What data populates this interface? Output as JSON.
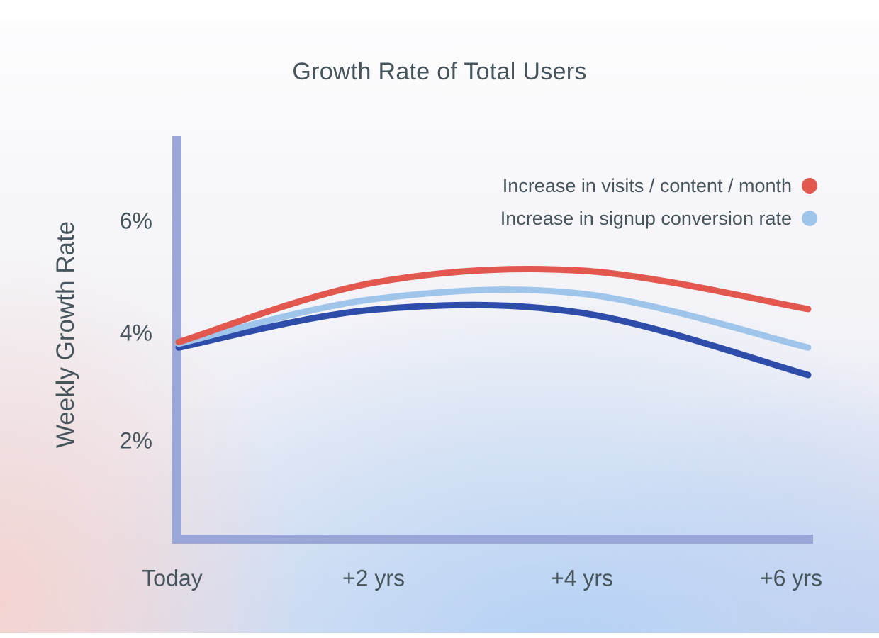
{
  "page": {
    "title": "Growth Rate of Total Users"
  },
  "colors": {
    "axis": "#9aa7d8",
    "text": "#47555c",
    "background_top": "#fdfdfe",
    "background_pink": "#f6d0ca",
    "background_blue": "#cfe0f6"
  },
  "chart_data": {
    "type": "line",
    "title": "Growth Rate of Total Users",
    "xlabel": "",
    "ylabel": "Weekly Growth Rate",
    "categories": [
      "Today",
      "+2 yrs",
      "+4 yrs",
      "+6 yrs"
    ],
    "yticks": [
      "6%",
      "4%",
      "2%"
    ],
    "ytick_values": [
      6,
      4,
      2
    ],
    "y_unit": "%",
    "ylim": [
      0.2,
      7.5
    ],
    "grid": false,
    "legend_position": "top-right",
    "series": [
      {
        "id": "visits-per-content-per-month",
        "name": "Increase in visits / content / month",
        "color": "#e2574e",
        "values": [
          3.8,
          4.88,
          5.1,
          4.4
        ],
        "in_legend": true
      },
      {
        "id": "signup-conversion-rate",
        "name": "Increase in signup conversion rate",
        "color": "#a0c5ea",
        "values": [
          3.77,
          4.58,
          4.68,
          3.7
        ],
        "in_legend": true
      },
      {
        "id": "unlabeled-dark-blue",
        "name": "",
        "color": "#2e4dab",
        "values": [
          3.7,
          4.39,
          4.33,
          3.2
        ],
        "in_legend": false
      }
    ]
  }
}
